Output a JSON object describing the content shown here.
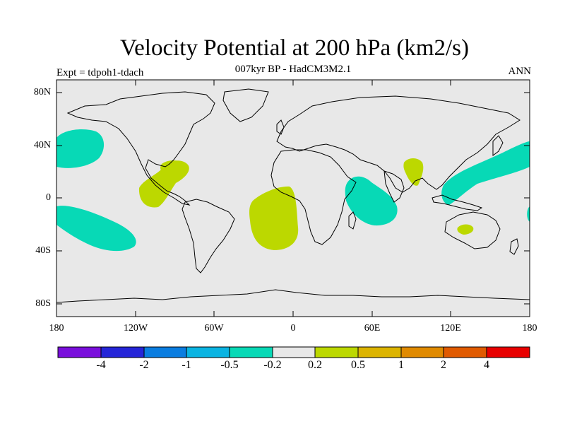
{
  "header": {
    "title": "Velocity Potential at 200 hPa (km2/s)",
    "subtitle": "007kyr BP - HadCM3M2.1",
    "left_label": "Expt = tdpoh1-tdach",
    "right_label": "ANN"
  },
  "axes": {
    "lat_labels": [
      "80N",
      "40N",
      "0",
      "40S",
      "80S"
    ],
    "lon_labels": [
      "180",
      "120W",
      "60W",
      "0",
      "60E",
      "120E",
      "180"
    ]
  },
  "colorbar": {
    "labels": [
      "-4",
      "-2",
      "-1",
      "-0.5",
      "-0.2",
      "0.2",
      "0.5",
      "1",
      "2",
      "4"
    ],
    "colors": [
      "#7a0fdc",
      "#2525d8",
      "#0a7de0",
      "#0ab4e2",
      "#07d9b6",
      "#e8e8e8",
      "#bcd800",
      "#dcb400",
      "#e08a00",
      "#e05a00",
      "#e82000",
      "#e80000"
    ]
  },
  "map_colors": {
    "background": "#e8e8e8",
    "positive_region": "#bcd800",
    "negative_region": "#07d9b6"
  }
}
